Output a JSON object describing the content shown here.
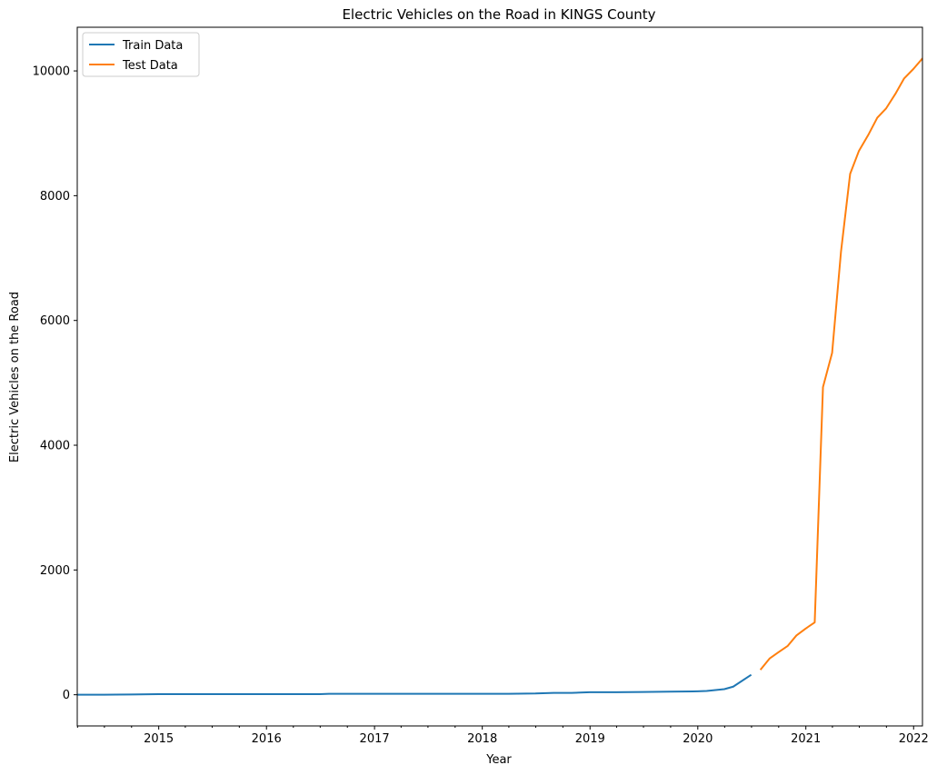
{
  "chart_data": {
    "type": "line",
    "title": "Electric Vehicles on the Road in KINGS County",
    "xlabel": "Year",
    "ylabel": "Electric Vehicles on the Road",
    "xlim": [
      "2014-03-31",
      "2022-01-31"
    ],
    "ylim": [
      -500,
      10700
    ],
    "x_ticks": [
      "2015",
      "2016",
      "2017",
      "2018",
      "2019",
      "2020",
      "2021",
      "2022"
    ],
    "y_ticks": [
      0,
      2000,
      4000,
      6000,
      8000,
      10000
    ],
    "grid": false,
    "legend": "upper left",
    "series": [
      {
        "name": "Train Data",
        "color": "#1f77b4",
        "points": [
          [
            "2014-03-31",
            0
          ],
          [
            "2014-06-30",
            0
          ],
          [
            "2014-09-30",
            5
          ],
          [
            "2014-12-31",
            10
          ],
          [
            "2015-06-30",
            10
          ],
          [
            "2015-12-31",
            10
          ],
          [
            "2016-06-30",
            10
          ],
          [
            "2016-07-31",
            15
          ],
          [
            "2017-06-30",
            15
          ],
          [
            "2018-03-31",
            15
          ],
          [
            "2018-06-30",
            20
          ],
          [
            "2018-08-31",
            30
          ],
          [
            "2018-10-31",
            30
          ],
          [
            "2018-12-31",
            40
          ],
          [
            "2019-03-31",
            40
          ],
          [
            "2019-06-30",
            45
          ],
          [
            "2019-09-30",
            50
          ],
          [
            "2019-12-31",
            55
          ],
          [
            "2020-01-31",
            60
          ],
          [
            "2020-03-31",
            90
          ],
          [
            "2020-04-30",
            130
          ],
          [
            "2020-06-30",
            320
          ]
        ]
      },
      {
        "name": "Test Data",
        "color": "#ff7f0e",
        "points": [
          [
            "2020-07-31",
            400
          ],
          [
            "2020-08-31",
            580
          ],
          [
            "2020-09-30",
            680
          ],
          [
            "2020-10-31",
            780
          ],
          [
            "2020-11-30",
            950
          ],
          [
            "2020-12-31",
            1060
          ],
          [
            "2021-01-31",
            1160
          ],
          [
            "2021-02-28",
            4930
          ],
          [
            "2021-03-31",
            5480
          ],
          [
            "2021-04-30",
            7100
          ],
          [
            "2021-05-31",
            8350
          ],
          [
            "2021-06-30",
            8720
          ],
          [
            "2021-07-31",
            8970
          ],
          [
            "2021-08-31",
            9250
          ],
          [
            "2021-09-30",
            9400
          ],
          [
            "2021-10-31",
            9630
          ],
          [
            "2021-11-30",
            9880
          ],
          [
            "2021-12-31",
            10030
          ],
          [
            "2022-01-31",
            10200
          ]
        ]
      }
    ]
  }
}
